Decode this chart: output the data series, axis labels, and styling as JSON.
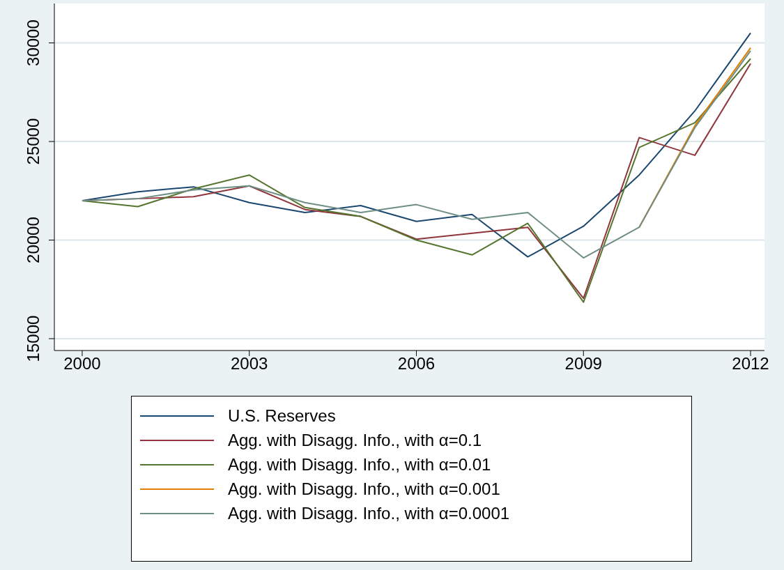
{
  "chart_data": {
    "type": "line",
    "x": [
      2000,
      2001,
      2002,
      2003,
      2004,
      2005,
      2006,
      2007,
      2008,
      2009,
      2010,
      2011,
      2012
    ],
    "series": [
      {
        "name": "U.S. Reserves",
        "color": "#1a476f",
        "values": [
          22000,
          22450,
          22700,
          21900,
          21400,
          21750,
          20950,
          21300,
          19150,
          20700,
          23300,
          26550,
          30500
        ]
      },
      {
        "name": "Agg. with Disagg. Info., with α=0.1",
        "color": "#90353b",
        "values": [
          22000,
          22100,
          22200,
          22750,
          21550,
          21200,
          20050,
          20350,
          20650,
          17050,
          25200,
          24300,
          28950
        ]
      },
      {
        "name": "Agg. with Disagg. Info., with α=0.01",
        "color": "#55752f",
        "values": [
          22000,
          21700,
          22600,
          23300,
          21650,
          21200,
          20000,
          19250,
          20850,
          16850,
          24700,
          25950,
          29200
        ]
      },
      {
        "name": "Agg. with Disagg. Info., with α=0.001",
        "color": "#e37e00",
        "values": [
          null,
          null,
          null,
          null,
          null,
          null,
          null,
          null,
          null,
          null,
          20650,
          25800,
          29750
        ]
      },
      {
        "name": "Agg. with Disagg. Info., with α=0.0001",
        "color": "#6e8e84",
        "values": [
          22000,
          22100,
          22550,
          22750,
          21900,
          21400,
          21800,
          21050,
          21400,
          19100,
          20650,
          25700,
          29600
        ]
      }
    ],
    "xlim": [
      1999.5,
      2012.25
    ],
    "xticks": [
      2000,
      2003,
      2006,
      2009,
      2012
    ],
    "ylim": [
      14400,
      32000
    ],
    "yticks": [
      15000,
      20000,
      25000,
      30000
    ],
    "grid": "y",
    "legend": "bottom",
    "marker": "none",
    "line_style": "solid"
  }
}
